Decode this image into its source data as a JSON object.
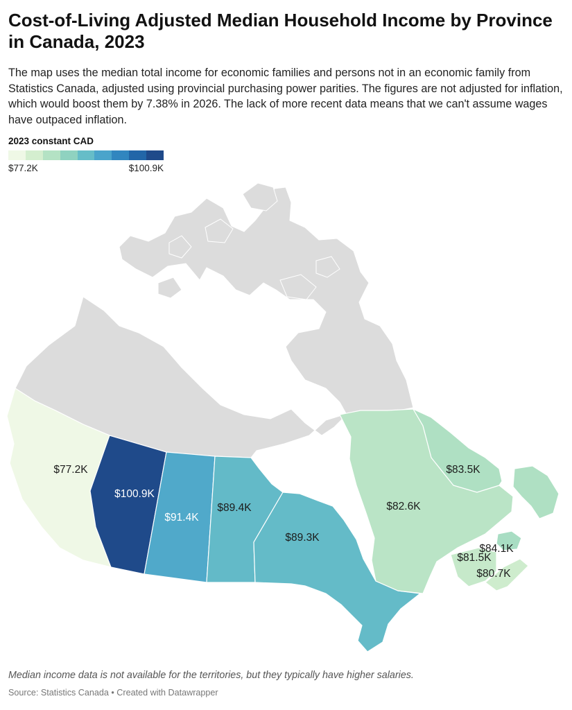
{
  "title": "Cost-of-Living Adjusted Median Household Income by Province in Canada, 2023",
  "description": "The map uses the median total income for economic families and persons not in an economic family from Statistics Canada, adjusted using provincial purchasing power parities. The figures are not adjusted for inflation, which would boost them by 7.38% in 2026. The lack of more recent data means that we can't assume wages have outpaced inflation.",
  "legend": {
    "title": "2023 constant CAD",
    "min_label": "$77.2K",
    "max_label": "$100.9K",
    "min": 77.2,
    "max": 100.9,
    "colors": [
      "#eff8e6",
      "#d4eecf",
      "#b4e2c4",
      "#8fd2c0",
      "#66bdc8",
      "#4aa4cb",
      "#3186bf",
      "#2266a8",
      "#1f4a8a"
    ]
  },
  "map": {
    "no_data_color": "#dcdcdc",
    "regions": [
      {
        "name": "British Columbia",
        "value": 77.2,
        "label": "$77.2K"
      },
      {
        "name": "Alberta",
        "value": 100.9,
        "label": "$100.9K"
      },
      {
        "name": "Saskatchewan",
        "value": 91.4,
        "label": "$91.4K"
      },
      {
        "name": "Manitoba",
        "value": 89.4,
        "label": "$89.4K"
      },
      {
        "name": "Ontario",
        "value": 89.3,
        "label": "$89.3K"
      },
      {
        "name": "Quebec",
        "value": 82.6,
        "label": "$82.6K"
      },
      {
        "name": "Newfoundland and Labrador",
        "value": 83.5,
        "label": "$83.5K"
      },
      {
        "name": "Prince Edward Island",
        "value": 84.1,
        "label": "$84.1K"
      },
      {
        "name": "New Brunswick",
        "value": 81.5,
        "label": "$81.5K"
      },
      {
        "name": "Nova Scotia",
        "value": 80.7,
        "label": "$80.7K"
      }
    ]
  },
  "note": "Median income data is not available for the territories, but they typically have higher salaries.",
  "source": "Source: Statistics Canada • Created with Datawrapper"
}
